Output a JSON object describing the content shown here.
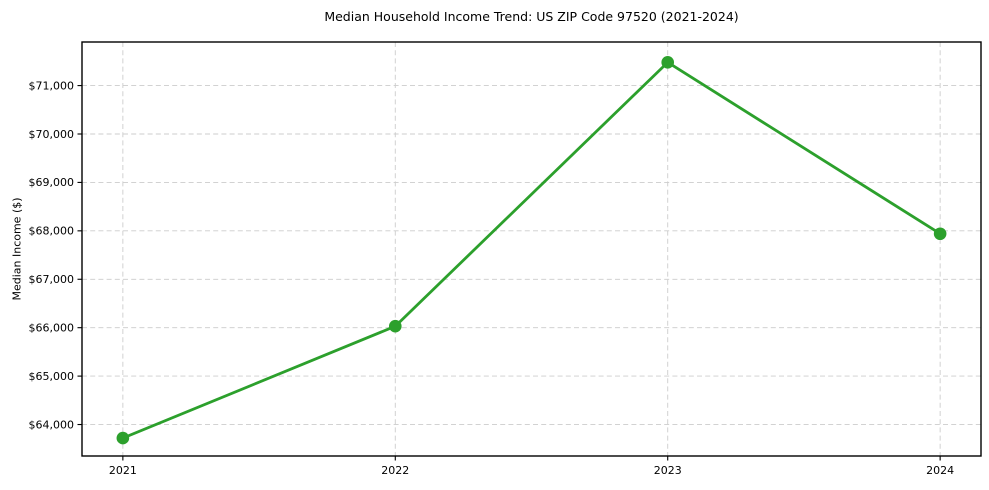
{
  "chart_data": {
    "type": "line",
    "title": "Median Household Income Trend: US ZIP Code 97520 (2021-2024)",
    "xlabel": "",
    "ylabel": "Median Income ($)",
    "x": [
      2021,
      2022,
      2023,
      2024
    ],
    "series": [
      {
        "name": "Median Household Income",
        "values": [
          63720,
          66030,
          71480,
          67940
        ]
      }
    ],
    "x_tick_labels": [
      "2021",
      "2022",
      "2023",
      "2024"
    ],
    "y_tick_values": [
      64000,
      65000,
      66000,
      67000,
      68000,
      69000,
      70000,
      71000
    ],
    "y_tick_labels": [
      "$64,000",
      "$65,000",
      "$66,000",
      "$67,000",
      "$68,000",
      "$69,000",
      "$70,000",
      "$71,000"
    ],
    "xlim": [
      2020.85,
      2024.15
    ],
    "ylim": [
      63350,
      71900
    ],
    "grid": true,
    "grid_style": "dashed",
    "legend": false,
    "line_color": "#2ca02c",
    "marker_color": "#2ca02c",
    "grid_color": "#cccccc",
    "spine_color": "#000000",
    "text_color": "#000000",
    "background_color": "#ffffff"
  }
}
